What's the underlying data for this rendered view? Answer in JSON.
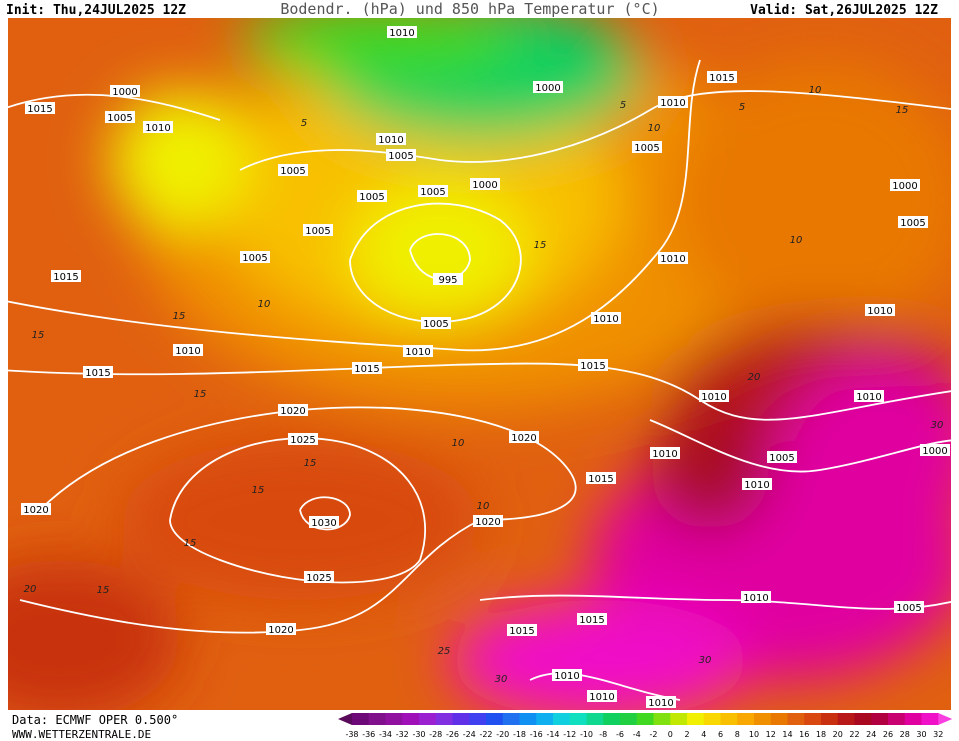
{
  "header": {
    "init": "Init: Thu,24JUL2025 12Z",
    "title": "Bodendr. (hPa) und 850 hPa Temperatur (°C)",
    "valid": "Valid: Sat,26JUL2025 12Z"
  },
  "footer": {
    "data": "Data: ECMWF OPER 0.500°",
    "site": "WWW.WETTERZENTRALE.DE"
  },
  "isobar_labels": [
    1010,
    1015,
    1000,
    1000,
    1015,
    1005,
    1010,
    1010,
    1010,
    1005,
    1005,
    1005,
    1005,
    1000,
    1005,
    1000,
    1005,
    1005,
    1005,
    1010,
    995,
    1015,
    1010,
    1005,
    1010,
    1010,
    1010,
    1015,
    1015,
    1015,
    1010,
    1010,
    1020,
    1025,
    1020,
    1010,
    1005,
    1000,
    1015,
    1010,
    1020,
    1030,
    1020,
    1025,
    1010,
    1005,
    1015,
    1015,
    1020,
    1010,
    1010,
    1010
  ],
  "temperature_labels": [
    5,
    5,
    5,
    10,
    10,
    10,
    10,
    10,
    10,
    15,
    15,
    15,
    15,
    15,
    15,
    15,
    15,
    15,
    20,
    20,
    25,
    30,
    30,
    30
  ],
  "colorbar": {
    "labels": [
      -38,
      -36,
      -34,
      -32,
      -30,
      -28,
      -26,
      -24,
      -22,
      -20,
      -18,
      -16,
      -14,
      -12,
      -10,
      -8,
      -6,
      -4,
      -2,
      0,
      2,
      4,
      6,
      8,
      10,
      12,
      14,
      16,
      18,
      20,
      22,
      24,
      26,
      28,
      30,
      32
    ],
    "colors": [
      "#5a0a5a",
      "#6e0a78",
      "#80108c",
      "#9010a0",
      "#a010b8",
      "#9a20d0",
      "#8030e0",
      "#6030e8",
      "#4040f0",
      "#2050f0",
      "#2070f0",
      "#1090f0",
      "#10b0f0",
      "#10d0e0",
      "#10e0c0",
      "#10d890",
      "#10d060",
      "#20d040",
      "#40d820",
      "#80e010",
      "#c0e800",
      "#f0f000",
      "#f8d800",
      "#f8c000",
      "#f8a800",
      "#f09000",
      "#e87800",
      "#e06010",
      "#d84810",
      "#c83010",
      "#b81818",
      "#a80820",
      "#b00040",
      "#c80070",
      "#e000a0",
      "#f010c8",
      "#f840e0"
    ]
  }
}
